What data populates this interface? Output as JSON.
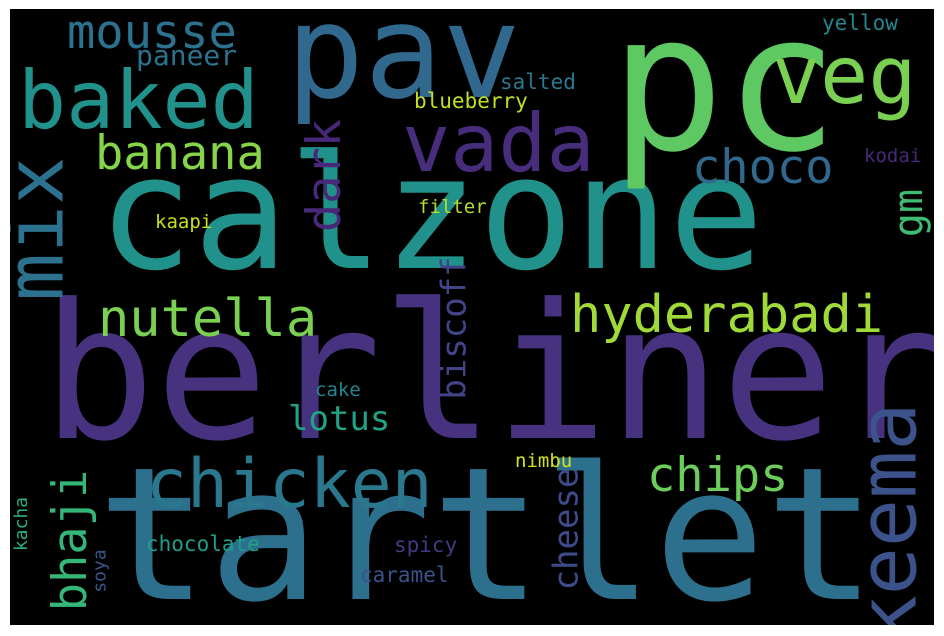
{
  "words": [
    {
      "id": "berliner",
      "text": "berliner",
      "color": "#46327e"
    },
    {
      "id": "tartlet",
      "text": "tartlet",
      "color": "#2d708e"
    },
    {
      "id": "calzone",
      "text": "calzone",
      "color": "#21918c"
    },
    {
      "id": "pc",
      "text": "pc",
      "color": "#5ec962"
    },
    {
      "id": "pav",
      "text": "pav",
      "color": "#31688e"
    },
    {
      "id": "vada",
      "text": "vada",
      "color": "#472d7b"
    },
    {
      "id": "baked",
      "text": "baked",
      "color": "#21918c"
    },
    {
      "id": "veg",
      "text": "veg",
      "color": "#7ad151"
    },
    {
      "id": "mix",
      "text": "mix",
      "color": "#2c728e"
    },
    {
      "id": "keema",
      "text": "keema",
      "color": "#3b528b"
    },
    {
      "id": "chicken",
      "text": "chicken",
      "color": "#2a788e"
    },
    {
      "id": "hyderabadi",
      "text": "hyderabadi",
      "color": "#a0da39"
    },
    {
      "id": "nutella",
      "text": "nutella",
      "color": "#7ad151"
    },
    {
      "id": "banana",
      "text": "banana",
      "color": "#86d549"
    },
    {
      "id": "mousse",
      "text": "mousse",
      "color": "#2c728e"
    },
    {
      "id": "chips",
      "text": "chips",
      "color": "#6ccd5a"
    },
    {
      "id": "choco",
      "text": "choco",
      "color": "#31688e"
    },
    {
      "id": "dark",
      "text": "dark",
      "color": "#482878"
    },
    {
      "id": "bhaji",
      "text": "bhaji",
      "color": "#35b779"
    },
    {
      "id": "gm",
      "text": "gm",
      "color": "#3fbc73"
    },
    {
      "id": "lotus",
      "text": "lotus",
      "color": "#20a386"
    },
    {
      "id": "biscoff",
      "text": "biscoff",
      "color": "#414487"
    },
    {
      "id": "cheese",
      "text": "cheese",
      "color": "#3e4a89"
    },
    {
      "id": "paneer",
      "text": "paneer",
      "color": "#2c728e"
    },
    {
      "id": "blueberry",
      "text": "blueberry",
      "color": "#c2df23"
    },
    {
      "id": "salted",
      "text": "salted",
      "color": "#2a788e"
    },
    {
      "id": "yellow",
      "text": "yellow",
      "color": "#24868e"
    },
    {
      "id": "kodai",
      "text": "kodai",
      "color": "#482878"
    },
    {
      "id": "filter",
      "text": "filter",
      "color": "#b5de2b"
    },
    {
      "id": "kaapi",
      "text": "kaapi",
      "color": "#c8e020"
    },
    {
      "id": "cake",
      "text": "cake",
      "color": "#24868e"
    },
    {
      "id": "nimbu",
      "text": "nimbu",
      "color": "#d2e21b"
    },
    {
      "id": "kacha",
      "text": "kacha",
      "color": "#29af7f"
    },
    {
      "id": "chocolate",
      "text": "chocolate",
      "color": "#1f9e89"
    },
    {
      "id": "spicy",
      "text": "spicy",
      "color": "#443983"
    },
    {
      "id": "soya",
      "text": "soya",
      "color": "#39568c"
    },
    {
      "id": "caramel",
      "text": "caramel",
      "color": "#3b528b"
    }
  ]
}
